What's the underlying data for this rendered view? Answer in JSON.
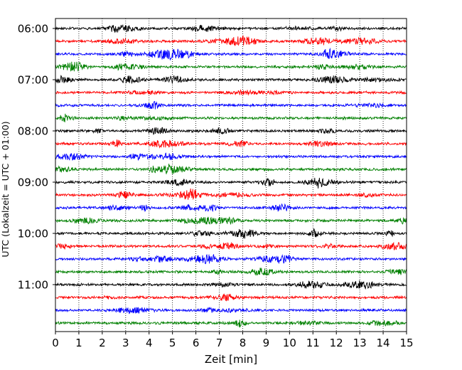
{
  "chart_data": {
    "type": "line",
    "title": "",
    "xlabel": "Zeit  [min]",
    "ylabel": "UTC (Lokalzeit = UTC + 01:00)",
    "xlim": [
      0,
      15
    ],
    "xticks": [
      0,
      1,
      2,
      3,
      4,
      5,
      6,
      7,
      8,
      9,
      10,
      11,
      12,
      13,
      14,
      15
    ],
    "grid_x": true,
    "grid_x_style": "dotted",
    "trace_interval_minutes": 15,
    "start_time": "06:00",
    "row_tick_labels": [
      {
        "row": 0,
        "label": "06:00"
      },
      {
        "row": 4,
        "label": "07:00"
      },
      {
        "row": 8,
        "label": "08:00"
      },
      {
        "row": 12,
        "label": "09:00"
      },
      {
        "row": 16,
        "label": "10:00"
      },
      {
        "row": 20,
        "label": "11:00"
      }
    ],
    "colors": [
      "#000000",
      "#ff0000",
      "#0000ff",
      "#008000"
    ],
    "rows": [
      {
        "time": "06:00",
        "color": "#000000"
      },
      {
        "time": "06:15",
        "color": "#ff0000"
      },
      {
        "time": "06:30",
        "color": "#0000ff"
      },
      {
        "time": "06:45",
        "color": "#008000"
      },
      {
        "time": "07:00",
        "color": "#000000"
      },
      {
        "time": "07:15",
        "color": "#ff0000"
      },
      {
        "time": "07:30",
        "color": "#0000ff"
      },
      {
        "time": "07:45",
        "color": "#008000"
      },
      {
        "time": "08:00",
        "color": "#000000"
      },
      {
        "time": "08:15",
        "color": "#ff0000"
      },
      {
        "time": "08:30",
        "color": "#0000ff"
      },
      {
        "time": "08:45",
        "color": "#008000"
      },
      {
        "time": "09:00",
        "color": "#000000"
      },
      {
        "time": "09:15",
        "color": "#ff0000"
      },
      {
        "time": "09:30",
        "color": "#0000ff"
      },
      {
        "time": "09:45",
        "color": "#008000"
      },
      {
        "time": "10:00",
        "color": "#000000"
      },
      {
        "time": "10:15",
        "color": "#ff0000"
      },
      {
        "time": "10:30",
        "color": "#0000ff"
      },
      {
        "time": "10:45",
        "color": "#008000"
      },
      {
        "time": "11:00",
        "color": "#000000"
      },
      {
        "time": "11:15",
        "color": "#ff0000"
      },
      {
        "time": "11:30",
        "color": "#0000ff"
      },
      {
        "time": "11:45",
        "color": "#008000"
      }
    ]
  }
}
